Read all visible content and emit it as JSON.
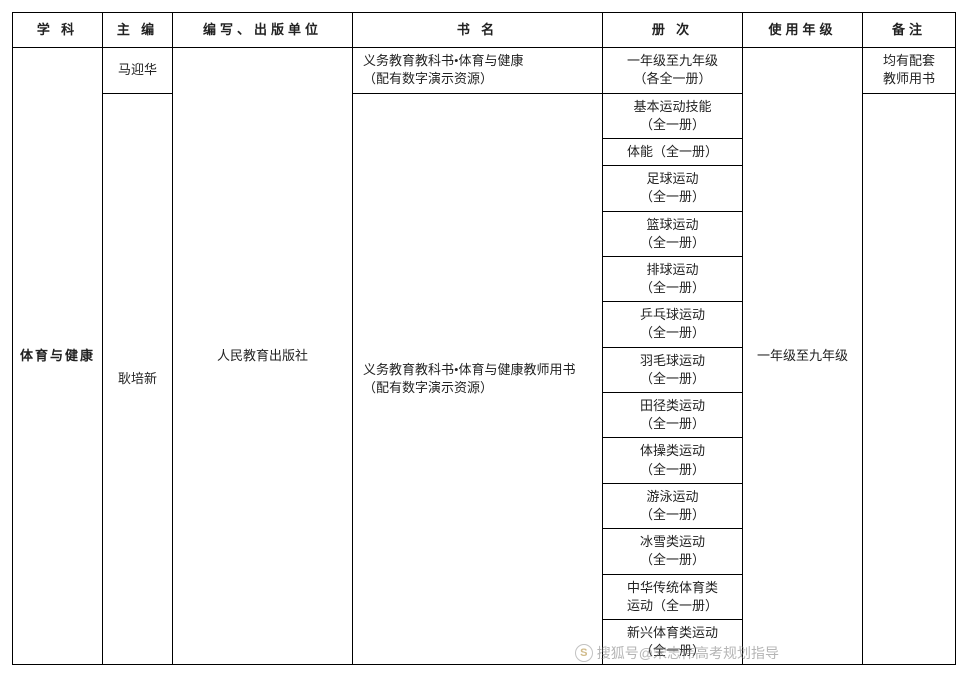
{
  "headers": {
    "subject": "学 科",
    "editor": "主 编",
    "publisher": "编写、出版单位",
    "book": "书 名",
    "volume": "册 次",
    "grade": "使用年级",
    "remark": "备注"
  },
  "subject": "体育与健康",
  "publisher": "人民教育出版社",
  "row1": {
    "editor": "马迎华",
    "book": "义务教育教科书•体育与健康\n（配有数字演示资源）",
    "volume": "一年级至九年级\n（各全一册）",
    "grade": "一年级至九年级",
    "remark": "均有配套\n教师用书"
  },
  "row2": {
    "editor": "耿培新",
    "book": "义务教育教科书•体育与健康教师用书\n（配有数字演示资源）",
    "volumes": [
      "基本运动技能\n（全一册）",
      "体能（全一册）",
      "足球运动\n（全一册）",
      "篮球运动\n（全一册）",
      "排球运动\n（全一册）",
      "乒乓球运动\n（全一册）",
      "羽毛球运动\n（全一册）",
      "田径类运动\n（全一册）",
      "体操类运动\n（全一册）",
      "游泳运动\n（全一册）",
      "冰雪类运动\n（全一册）",
      "中华传统体育类\n运动（全一册）",
      "新兴体育类运动\n（全一册）"
    ]
  },
  "watermark": "搜狐号@宋志伟高考规划指导",
  "colors": {
    "border": "#000000",
    "text": "#222222",
    "background": "#ffffff",
    "watermark": "rgba(120,120,120,0.55)"
  },
  "font_sizes": {
    "header": 13,
    "cell": 13,
    "watermark": 14
  }
}
